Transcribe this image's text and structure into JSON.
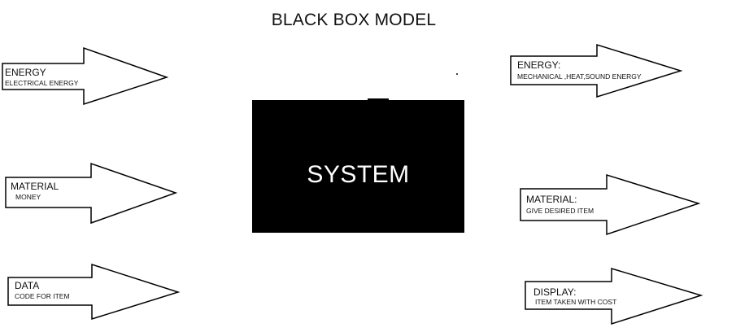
{
  "diagram": {
    "title": "BLACK BOX MODEL",
    "system_label": "SYSTEM",
    "inputs": [
      {
        "name": "ENERGY",
        "desc": "ELECTRICAL ENERGY"
      },
      {
        "name": "MATERIAL",
        "desc": "MONEY"
      },
      {
        "name": "DATA",
        "desc": "CODE FOR ITEM"
      }
    ],
    "outputs": [
      {
        "name": "ENERGY:",
        "desc": "MECHANICAL ,HEAT,SOUND ENERGY"
      },
      {
        "name": "MATERIAL:",
        "desc": "GIVE DESIRED ITEM"
      },
      {
        "name": "DISPLAY:",
        "desc": "ITEM TAKEN WITH COST"
      }
    ]
  }
}
